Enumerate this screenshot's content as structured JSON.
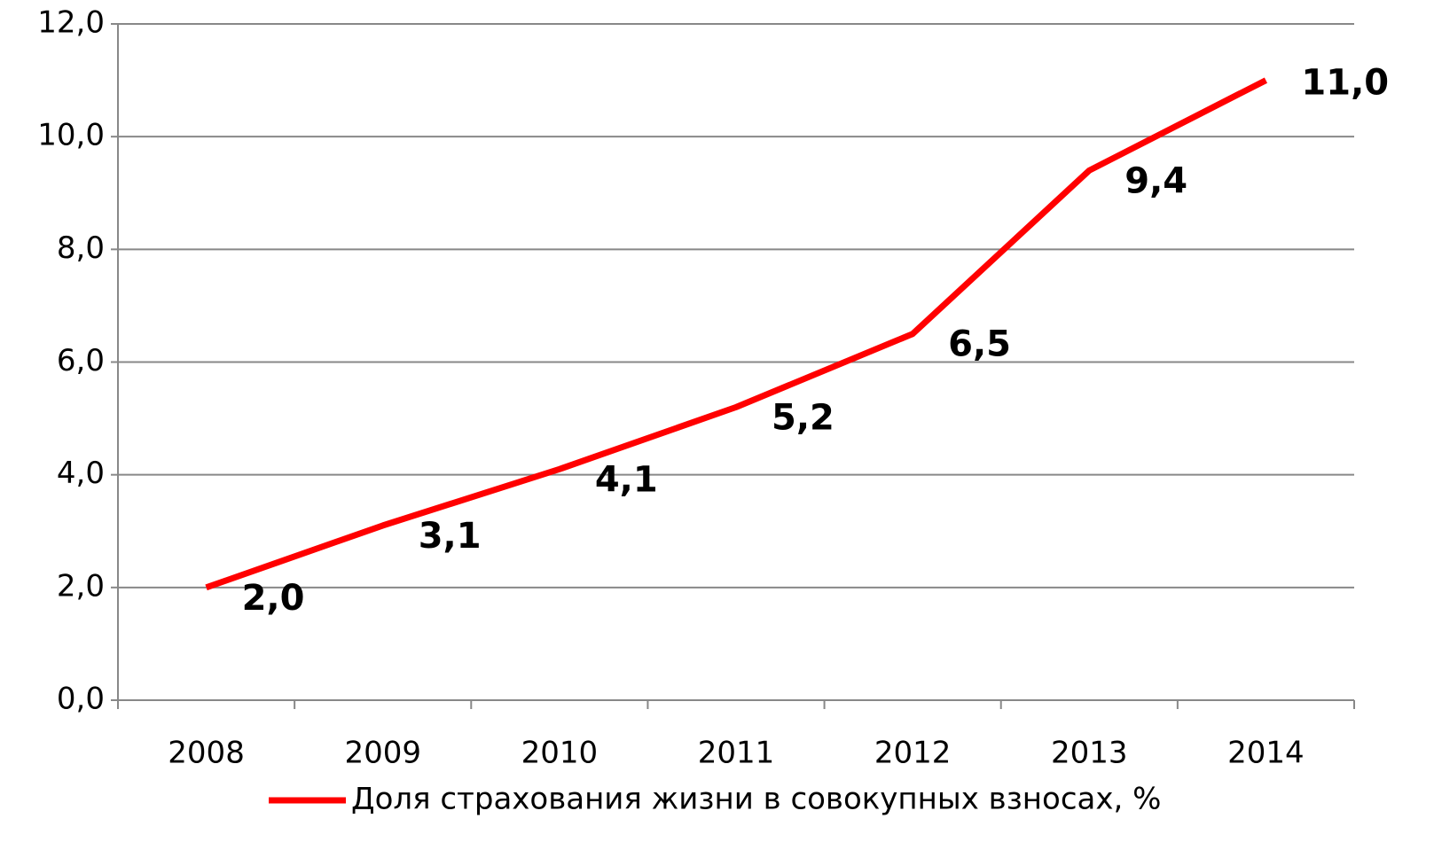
{
  "chart_data": {
    "type": "line",
    "categories": [
      "2008",
      "2009",
      "2010",
      "2011",
      "2012",
      "2013",
      "2014"
    ],
    "series": [
      {
        "name": "Доля страхования жизни в совокупных взносах, %",
        "color": "#ff0000",
        "values": [
          2.0,
          3.1,
          4.1,
          5.2,
          6.5,
          9.4,
          11.0
        ],
        "value_labels": [
          "2,0",
          "3,1",
          "4,1",
          "5,2",
          "6,5",
          "9,4",
          "11,0"
        ]
      }
    ],
    "ylim": [
      0,
      12
    ],
    "yticks": [
      {
        "value": 0,
        "label": "0,0"
      },
      {
        "value": 2,
        "label": "2,0"
      },
      {
        "value": 4,
        "label": "4,0"
      },
      {
        "value": 6,
        "label": "6,0"
      },
      {
        "value": 8,
        "label": "8,0"
      },
      {
        "value": 10,
        "label": "10,0"
      },
      {
        "value": 12,
        "label": "12,0"
      }
    ],
    "grid": true,
    "legend": "bottom"
  }
}
